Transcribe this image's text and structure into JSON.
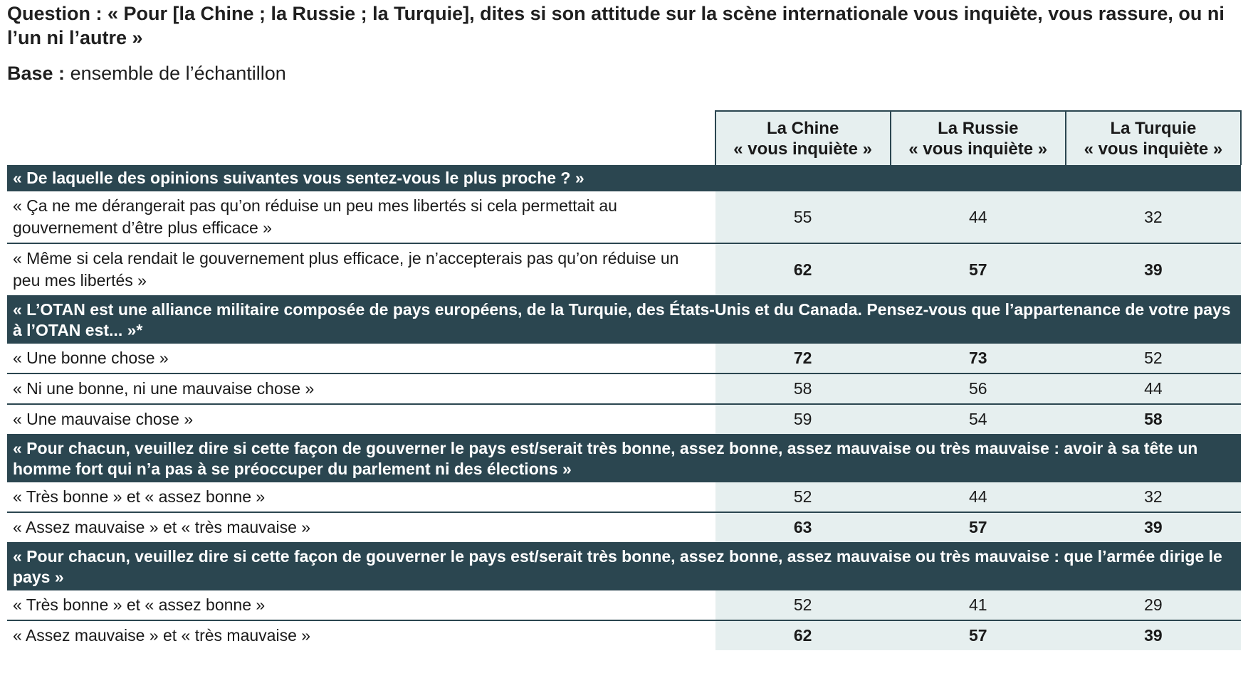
{
  "question": {
    "label": "Question :",
    "text": "« Pour [la Chine ; la Russie ; la Turquie], dites si son attitude sur la scène internationale vous inquiète, vous rassure, ou ni l’un ni l’autre »"
  },
  "base": {
    "label": "Base :",
    "text": "ensemble de l’échantillon"
  },
  "columns": [
    {
      "line1": "La Chine",
      "line2": "« vous inquiète »"
    },
    {
      "line1": "La Russie",
      "line2": "« vous inquiète »"
    },
    {
      "line1": "La Turquie",
      "line2": "« vous inquiète »"
    }
  ],
  "colors": {
    "section_bg": "#2b4650",
    "value_bg": "#e6efef",
    "section_text": "#ffffff"
  },
  "sections": [
    {
      "title": "« De laquelle des opinions suivantes vous sentez-vous le plus proche ? »",
      "rows": [
        {
          "label": "« Ça ne me dérangerait pas qu’on réduise un peu mes libertés si cela permettait au gouvernement d’être plus efficace »",
          "values": [
            "55",
            "44",
            "32"
          ],
          "bold": [
            false,
            false,
            false
          ]
        },
        {
          "label": "« Même si cela rendait le gouvernement plus efficace, je n’accepterais pas qu’on réduise un peu mes libertés »",
          "values": [
            "62",
            "57",
            "39"
          ],
          "bold": [
            true,
            true,
            true
          ]
        }
      ]
    },
    {
      "title": "« L’OTAN est une alliance militaire composée de pays européens, de la Turquie, des États-Unis et du Canada. Pensez-vous que l’appartenance de votre pays à l’OTAN est... »*",
      "rows": [
        {
          "label": "« Une bonne chose »",
          "values": [
            "72",
            "73",
            "52"
          ],
          "bold": [
            true,
            true,
            false
          ]
        },
        {
          "label": "« Ni une bonne, ni une mauvaise chose »",
          "values": [
            "58",
            "56",
            "44"
          ],
          "bold": [
            false,
            false,
            false
          ]
        },
        {
          "label": "« Une mauvaise chose »",
          "values": [
            "59",
            "54",
            "58"
          ],
          "bold": [
            false,
            false,
            true
          ]
        }
      ]
    },
    {
      "title": "« Pour chacun, veuillez dire si cette façon de gouverner le pays est/serait très bonne, assez bonne, assez mauvaise ou très mauvaise : avoir à sa tête un homme fort qui n’a pas à se préoccuper du parlement ni des élections »",
      "rows": [
        {
          "label": "« Très bonne » et « assez bonne »",
          "values": [
            "52",
            "44",
            "32"
          ],
          "bold": [
            false,
            false,
            false
          ]
        },
        {
          "label": "« Assez mauvaise » et « très mauvaise »",
          "values": [
            "63",
            "57",
            "39"
          ],
          "bold": [
            true,
            true,
            true
          ]
        }
      ]
    },
    {
      "title": "« Pour chacun, veuillez dire si cette façon de gouverner le pays est/serait très bonne, assez bonne, assez mauvaise ou très mauvaise : que l’armée dirige le pays »",
      "rows": [
        {
          "label": "« Très bonne » et « assez bonne »",
          "values": [
            "52",
            "41",
            "29"
          ],
          "bold": [
            false,
            false,
            false
          ]
        },
        {
          "label": "« Assez mauvaise » et « très mauvaise »",
          "values": [
            "62",
            "57",
            "39"
          ],
          "bold": [
            true,
            true,
            true
          ]
        }
      ]
    }
  ]
}
